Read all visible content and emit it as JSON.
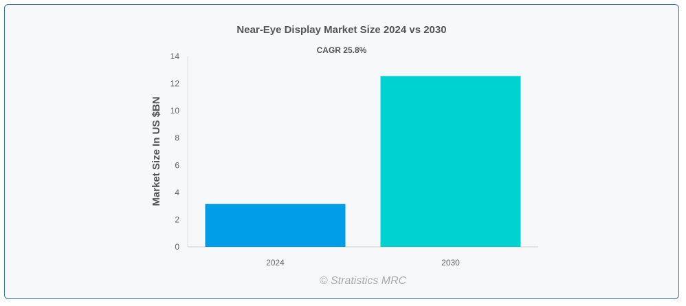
{
  "chart_data": {
    "type": "bar",
    "title": "Near-Eye Display Market Size 2024 vs 2030",
    "subtitle": "CAGR 25.8%",
    "ylabel": "Market Size In US $BN",
    "xlabel": "",
    "categories": [
      "2024",
      "2030"
    ],
    "values": [
      3.15,
      12.55
    ],
    "bar_colors": [
      "#009ee8",
      "#00d2d2"
    ],
    "ylim": [
      0,
      14
    ],
    "yticks": [
      0,
      2,
      4,
      6,
      8,
      10,
      12,
      14
    ],
    "grid": false,
    "legend": "none"
  },
  "watermark": "© Stratistics MRC"
}
